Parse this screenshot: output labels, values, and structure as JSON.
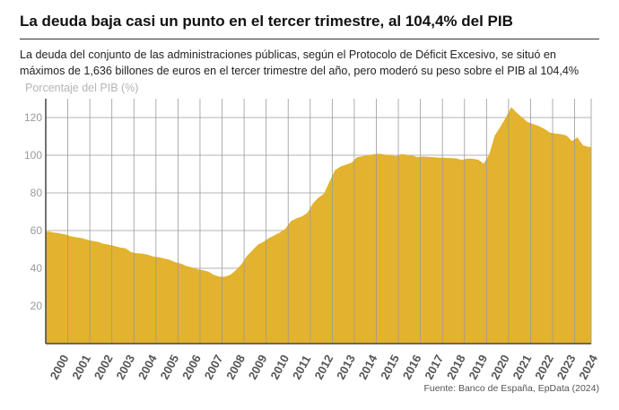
{
  "header": {
    "title": "La deuda baja casi un punto en el tercer trimestre, al 104,4% del PIB",
    "subtitle": "La deuda del conjunto de las administraciones públicas, según el Protocolo de Déficit Excesivo, se situó en máximos de 1,636 billones de euros en el tercer trimestre del año, pero moderó su peso sobre el PIB al 104,4%"
  },
  "footer": {
    "source": "Fuente: Banco de España, EpData (2024)"
  },
  "colors": {
    "area": "#e3b22e",
    "grid": "#9a9a9a",
    "axis": "#444444"
  },
  "chart_data": {
    "type": "area",
    "ylabel": "Porcentaje del PIB (%)",
    "xlabel": "",
    "ylim": [
      0,
      130
    ],
    "yticks": [
      20,
      40,
      60,
      80,
      100,
      120
    ],
    "grid": true,
    "x_tick_labels": [
      "2000",
      "2001",
      "2002",
      "2003",
      "2004",
      "2005",
      "2006",
      "2007",
      "2008",
      "2009",
      "2010",
      "2011",
      "2012",
      "2013",
      "2014",
      "2015",
      "2016",
      "2017",
      "2018",
      "2019",
      "2020",
      "2021",
      "2022",
      "2023",
      "2024"
    ],
    "x": [
      "2000-T1",
      "2000-T2",
      "2000-T3",
      "2000-T4",
      "2001-T1",
      "2001-T2",
      "2001-T3",
      "2001-T4",
      "2002-T1",
      "2002-T2",
      "2002-T3",
      "2002-T4",
      "2003-T1",
      "2003-T2",
      "2003-T3",
      "2003-T4",
      "2004-T1",
      "2004-T2",
      "2004-T3",
      "2004-T4",
      "2005-T1",
      "2005-T2",
      "2005-T3",
      "2005-T4",
      "2006-T1",
      "2006-T2",
      "2006-T3",
      "2006-T4",
      "2007-T1",
      "2007-T2",
      "2007-T3",
      "2007-T4",
      "2008-T1",
      "2008-T2",
      "2008-T3",
      "2008-T4",
      "2009-T1",
      "2009-T2",
      "2009-T3",
      "2009-T4",
      "2010-T1",
      "2010-T2",
      "2010-T3",
      "2010-T4",
      "2011-T1",
      "2011-T2",
      "2011-T3",
      "2011-T4",
      "2012-T1",
      "2012-T2",
      "2012-T3",
      "2012-T4",
      "2013-T1",
      "2013-T2",
      "2013-T3",
      "2013-T4",
      "2014-T1",
      "2014-T2",
      "2014-T3",
      "2014-T4",
      "2015-T1",
      "2015-T2",
      "2015-T3",
      "2015-T4",
      "2016-T1",
      "2016-T2",
      "2016-T3",
      "2016-T4",
      "2017-T1",
      "2017-T2",
      "2017-T3",
      "2017-T4",
      "2018-T1",
      "2018-T2",
      "2018-T3",
      "2018-T4",
      "2019-T1",
      "2019-T2",
      "2019-T3",
      "2019-T4",
      "2020-T1",
      "2020-T2",
      "2020-T3",
      "2020-T4",
      "2021-T1",
      "2021-T2",
      "2021-T3",
      "2021-T4",
      "2022-T1",
      "2022-T2",
      "2022-T3",
      "2022-T4",
      "2023-T1",
      "2023-T2",
      "2023-T3",
      "2023-T4",
      "2024-T1",
      "2024-T2",
      "2024-T3"
    ],
    "series": [
      {
        "values": [
          59.5,
          59,
          58.5,
          58,
          57,
          56.5,
          56,
          55.2,
          54.5,
          54,
          53,
          52.5,
          51.8,
          51,
          50.5,
          48.5,
          48,
          47.8,
          47.2,
          46.2,
          45.8,
          45.2,
          44.5,
          43.2,
          42.5,
          41.2,
          40.5,
          39.5,
          39,
          38.2,
          36.5,
          35.5,
          35.5,
          36.5,
          39,
          42,
          46.5,
          49.5,
          52.5,
          54,
          56,
          57.5,
          59,
          61,
          65,
          66.5,
          67.5,
          69.5,
          74.5,
          77.5,
          79.5,
          86,
          92,
          94,
          95,
          96,
          99,
          99.5,
          100,
          100.5,
          100.8,
          100.4,
          100.2,
          99.5,
          100.6,
          100.3,
          99.8,
          99,
          99.3,
          99.1,
          98.9,
          98.7,
          98.6,
          98.5,
          98.3,
          97.5,
          98.2,
          98.1,
          97.6,
          95.5,
          100.5,
          110.5,
          115,
          120,
          125.5,
          122.5,
          120,
          117.5,
          116.5,
          115.5,
          114,
          112,
          111.5,
          111.2,
          110.5,
          107.5,
          109.5,
          105.3,
          104.4
        ]
      }
    ]
  }
}
